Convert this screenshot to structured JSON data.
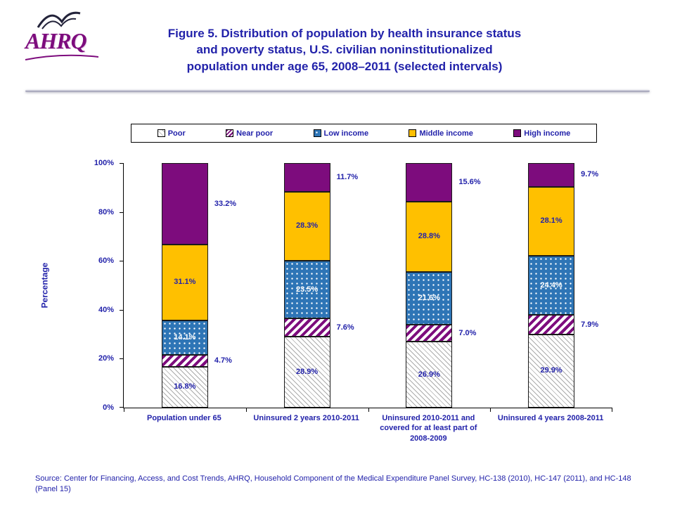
{
  "colors": {
    "navy": "#2222AA",
    "logo_purple": "#7D0C7D"
  },
  "header": {
    "logo_text": "AHRQ",
    "title_lines": [
      "Figure 5. Distribution of population by health insurance status",
      "and poverty status, U.S. civilian noninstitutionalized",
      "population under age 65, 2008–2011 (selected intervals)"
    ]
  },
  "chart_data": {
    "type": "bar",
    "stacked": true,
    "title": "Figure 5. Distribution of population by health insurance status and poverty status, U.S. civilian noninstitutionalized population under age 65, 2008–2011 (selected intervals)",
    "categories": [
      "Population under 65",
      "Uninsured 2 years 2010-2011",
      "Uninsured 2010-2011 and covered for at least part of 2008-2009",
      "Uninsured 4 years 2008-2011"
    ],
    "series": [
      {
        "name": "Poor",
        "values": [
          16.8,
          28.9,
          26.9,
          29.9
        ],
        "fill": "#FFFFFF",
        "pattern": "hatch",
        "pattern_color": "#ABABAB",
        "label": "inside"
      },
      {
        "name": "Near poor",
        "values": [
          4.7,
          7.6,
          7.0,
          7.9
        ],
        "fill": "#FFFFFF",
        "pattern": "hatch-bold",
        "pattern_color": "#7D0C7D",
        "label": "outside"
      },
      {
        "name": "Low income",
        "values": [
          14.1,
          23.5,
          21.6,
          24.4
        ],
        "fill": "#2E75B6",
        "pattern": "dots",
        "pattern_color": "#FFFFFF",
        "label": "inside-white"
      },
      {
        "name": "Middle income",
        "values": [
          31.1,
          28.3,
          28.8,
          28.1
        ],
        "fill": "#FFC000",
        "pattern": "solid",
        "pattern_color": "#FFC000",
        "label": "inside"
      },
      {
        "name": "High income",
        "values": [
          33.2,
          11.7,
          15.6,
          9.7
        ],
        "fill": "#7D0C7D",
        "pattern": "solid",
        "pattern_color": "#7D0C7D",
        "label": "outside"
      }
    ],
    "xlabel": "",
    "ylabel": "Percentage",
    "ylim": [
      0,
      100
    ],
    "yticks": [
      "0%",
      "20%",
      "40%",
      "60%",
      "80%",
      "100%"
    ],
    "grid": false,
    "legend_position": "top"
  },
  "footer": {
    "source_text": "Source: Center for Financing, Access, and Cost Trends, AHRQ, Household Component of the Medical Expenditure Panel Survey, HC-138 (2010), HC-147 (2011), and HC-148 (Panel 15)"
  }
}
